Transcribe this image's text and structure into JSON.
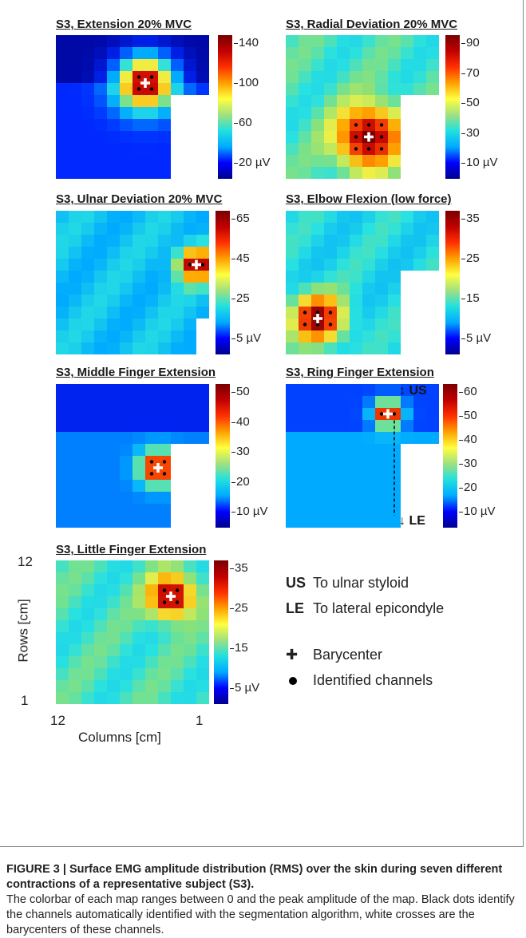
{
  "maps": [
    {
      "title": "S3, Extension 20% MVC",
      "ticks": [
        "140",
        "100",
        "60",
        "20 µV"
      ],
      "peak": {
        "r": 3.5,
        "c": 6.5
      },
      "spread": 1.6,
      "level": 0.15,
      "bgHigh": false
    },
    {
      "title": "S3, Radial Deviation 20% MVC",
      "ticks": [
        "90",
        "70",
        "50",
        "30",
        "10 µV"
      ],
      "peak": {
        "r": 8,
        "c": 6
      },
      "spread": 1.8,
      "level": 0.45,
      "bgHigh": true
    },
    {
      "title": "S3, Ulnar Deviation 20% MVC",
      "ticks": [
        "65",
        "45",
        "25",
        "5 µV"
      ],
      "peak": {
        "r": 4,
        "c": 10.5
      },
      "spread": 1.0,
      "level": 0.35,
      "bgHigh": true
    },
    {
      "title": "S3, Elbow Flexion (low force)",
      "ticks": [
        "35",
        "25",
        "15",
        "5 µV"
      ],
      "peak": {
        "r": 8.5,
        "c": 2
      },
      "spread": 1.4,
      "level": 0.4,
      "bgHigh": true
    },
    {
      "title": "S3, Middle Finger Extension",
      "ticks": [
        "50",
        "40",
        "30",
        "20",
        "10 µV"
      ],
      "peak": {
        "r": 6.5,
        "c": 7.5
      },
      "spread": 1.0,
      "level": 0.25,
      "bgHigh": false
    },
    {
      "title": "S3, Ring Finger Extension",
      "ticks": [
        "60",
        "50",
        "40",
        "30",
        "20",
        "10 µV"
      ],
      "peak": {
        "r": 2,
        "c": 7.5
      },
      "spread": 0.8,
      "level": 0.3,
      "bgHigh": false
    },
    {
      "title": "S3, Little Finger Extension",
      "ticks": [
        "35",
        "25",
        "15",
        "5 µV"
      ],
      "peak": {
        "r": 2.5,
        "c": 8.5
      },
      "spread": 1.2,
      "level": 0.45,
      "bgHigh": true
    }
  ],
  "axes": {
    "rows_label": "Rows [cm]",
    "cols_label": "Columns [cm]",
    "row_top": "12",
    "row_bottom": "1",
    "col_left": "12",
    "col_right": "1"
  },
  "ring_annotations": {
    "us": "US",
    "le": "LE"
  },
  "legend": {
    "us_abbr": "US",
    "us_text": "To ulnar styloid",
    "le_abbr": "LE",
    "le_text": "To lateral epicondyle",
    "bary_text": "Barycenter",
    "dots_text": "Identified channels"
  },
  "caption": {
    "title": "FIGURE 3 | Surface EMG amplitude distribution (RMS) over the skin during seven different contractions of a representative subject (S3).",
    "body": "The colorbar of each map ranges between 0 and the peak amplitude of the map. Black dots identify the channels automatically identified with the segmentation algorithm, white crosses are the barycenters of these channels."
  }
}
